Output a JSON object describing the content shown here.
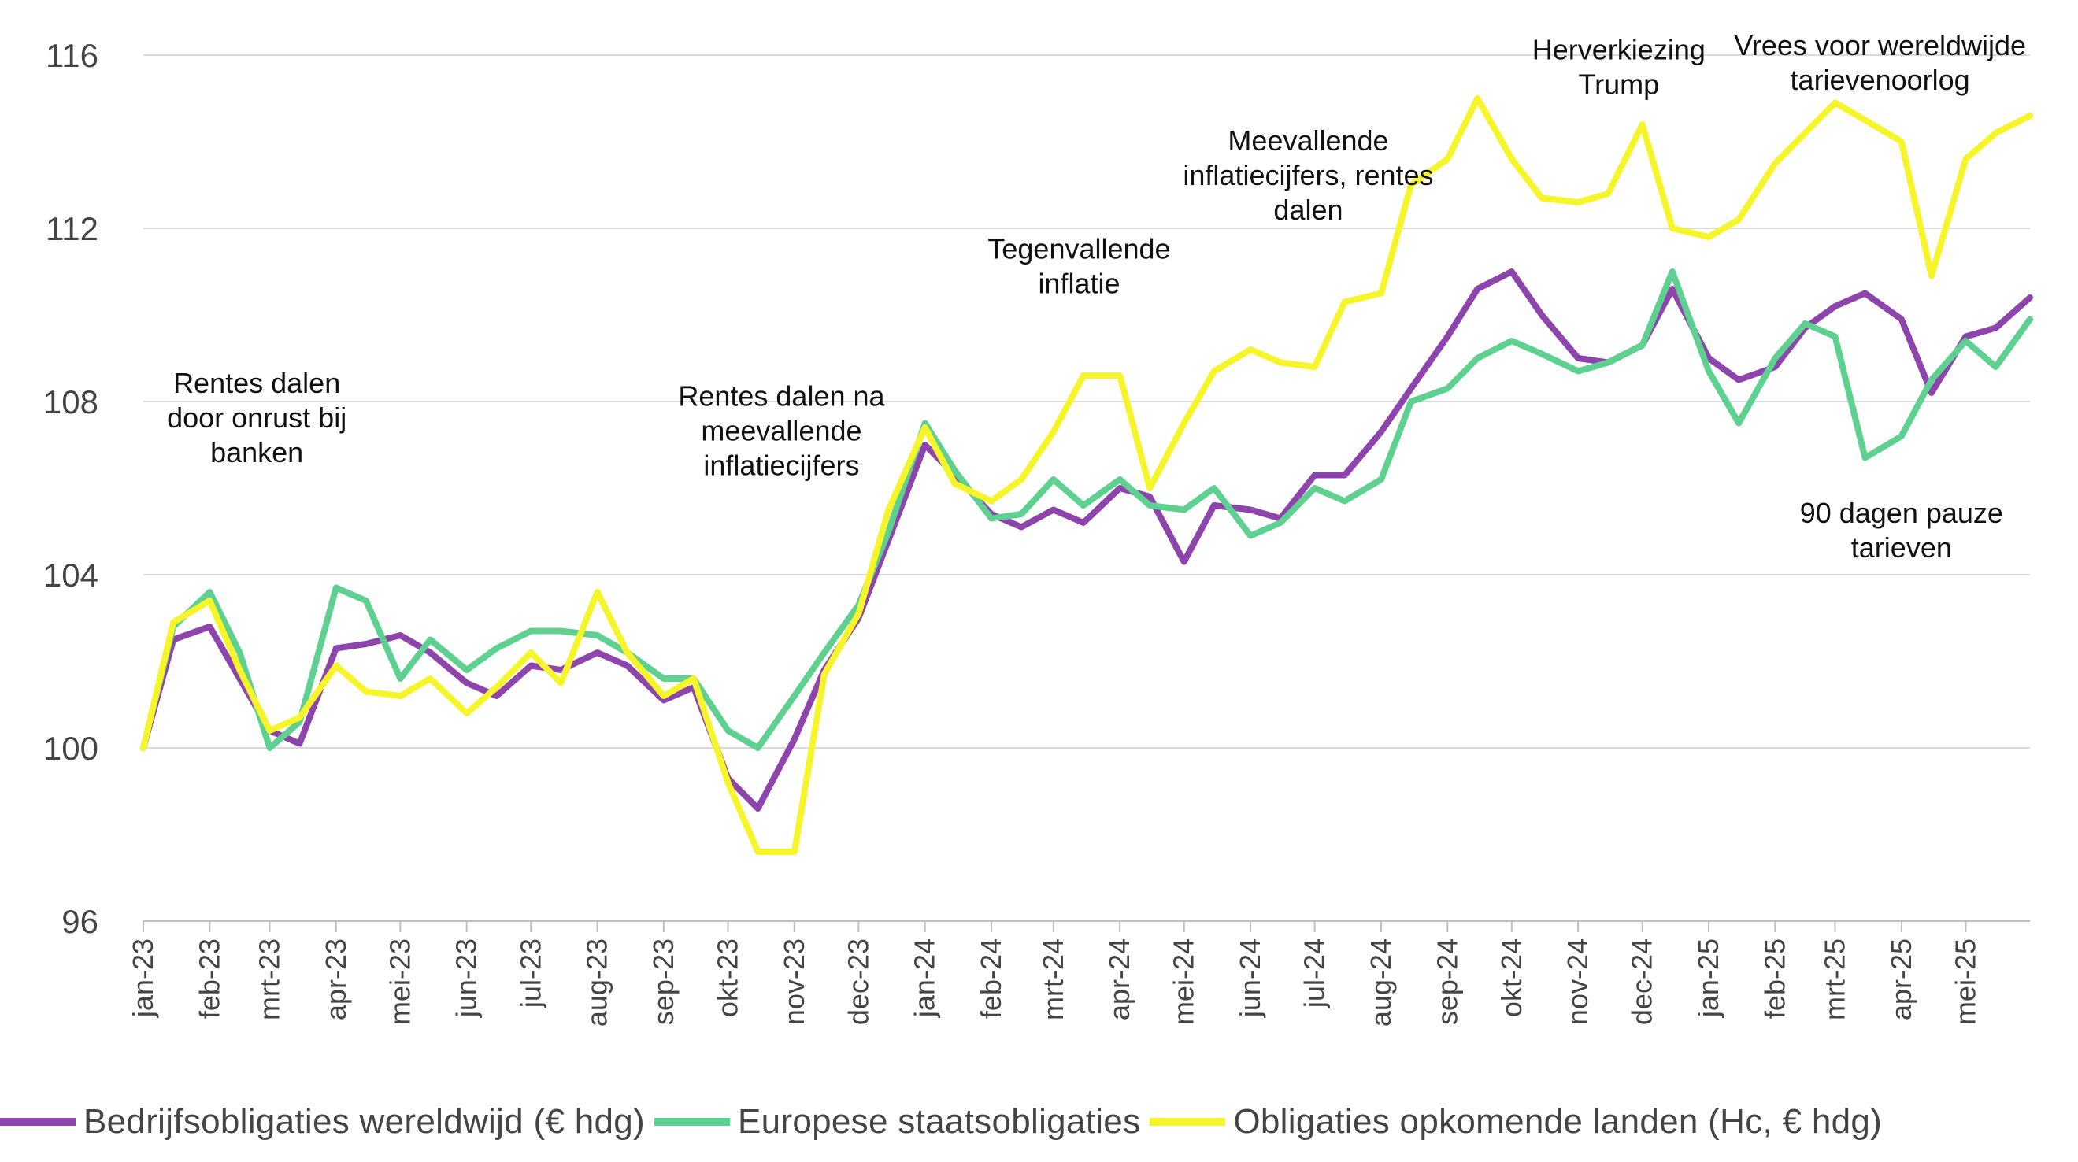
{
  "chart_data": {
    "type": "line",
    "title": "",
    "xlabel": "",
    "ylabel": "",
    "ylim": [
      96,
      116
    ],
    "yticks": [
      96,
      100,
      104,
      108,
      112,
      116
    ],
    "gridlines": true,
    "legend_position": "bottom",
    "x_tick_labels": [
      "jan-23",
      "feb-23",
      "mrt-23",
      "apr-23",
      "mei-23",
      "jun-23",
      "jul-23",
      "aug-23",
      "sep-23",
      "okt-23",
      "nov-23",
      "dec-23",
      "jan-24",
      "feb-24",
      "mrt-24",
      "apr-24",
      "mei-24",
      "jun-24",
      "jul-24",
      "aug-24",
      "sep-24",
      "okt-24",
      "nov-24",
      "dec-24",
      "jan-25",
      "feb-25",
      "mrt-25",
      "apr-25",
      "mei-25"
    ],
    "x": [
      "2023-01-01",
      "2023-01-15",
      "2023-02-01",
      "2023-02-15",
      "2023-03-01",
      "2023-03-15",
      "2023-04-01",
      "2023-04-15",
      "2023-05-01",
      "2023-05-15",
      "2023-06-01",
      "2023-06-15",
      "2023-07-01",
      "2023-07-15",
      "2023-08-01",
      "2023-08-15",
      "2023-09-01",
      "2023-09-15",
      "2023-10-01",
      "2023-10-15",
      "2023-11-01",
      "2023-11-15",
      "2023-12-01",
      "2023-12-15",
      "2024-01-01",
      "2024-01-15",
      "2024-02-01",
      "2024-02-15",
      "2024-03-01",
      "2024-03-15",
      "2024-04-01",
      "2024-04-15",
      "2024-05-01",
      "2024-05-15",
      "2024-06-01",
      "2024-06-15",
      "2024-07-01",
      "2024-07-15",
      "2024-08-01",
      "2024-08-15",
      "2024-09-01",
      "2024-09-15",
      "2024-10-01",
      "2024-10-15",
      "2024-11-01",
      "2024-11-15",
      "2024-12-01",
      "2024-12-15",
      "2025-01-01",
      "2025-01-15",
      "2025-02-01",
      "2025-02-15",
      "2025-03-01",
      "2025-03-15",
      "2025-04-01",
      "2025-04-15",
      "2025-05-01",
      "2025-05-15",
      "2025-05-31"
    ],
    "series": [
      {
        "name": "Bedrijfsobligaties wereldwijd (€ hdg)",
        "color": "#8e44ad",
        "values": [
          100.0,
          102.5,
          102.8,
          101.6,
          100.4,
          100.1,
          102.3,
          102.4,
          102.6,
          102.2,
          101.5,
          101.2,
          101.9,
          101.8,
          102.2,
          101.9,
          101.1,
          101.4,
          99.3,
          98.6,
          100.2,
          101.8,
          103.0,
          104.8,
          107.0,
          106.3,
          105.4,
          105.1,
          105.5,
          105.2,
          106.0,
          105.8,
          104.3,
          105.6,
          105.5,
          105.3,
          106.3,
          106.3,
          107.3,
          108.3,
          109.5,
          110.6,
          111.0,
          110.0,
          109.0,
          108.9,
          109.3,
          110.6,
          109.0,
          108.5,
          108.8,
          109.7,
          110.2,
          110.5,
          109.9,
          108.2,
          109.5,
          109.7,
          110.4
        ]
      },
      {
        "name": "Europese staatsobligaties",
        "color": "#5ed08f",
        "values": [
          100.0,
          102.8,
          103.6,
          102.2,
          100.0,
          100.6,
          103.7,
          103.4,
          101.6,
          102.5,
          101.8,
          102.3,
          102.7,
          102.7,
          102.6,
          102.2,
          101.6,
          101.6,
          100.4,
          100.0,
          101.2,
          102.2,
          103.3,
          105.0,
          107.5,
          106.4,
          105.3,
          105.4,
          106.2,
          105.6,
          106.2,
          105.6,
          105.5,
          106.0,
          104.9,
          105.2,
          106.0,
          105.7,
          106.2,
          108.0,
          108.3,
          109.0,
          109.4,
          109.1,
          108.7,
          108.9,
          109.3,
          111.0,
          108.7,
          107.5,
          109.0,
          109.8,
          109.5,
          106.7,
          107.2,
          108.5,
          109.4,
          108.8,
          109.9
        ]
      },
      {
        "name": "Obligaties opkomende landen (Hc, € hdg)",
        "color": "#f5f52a",
        "values": [
          100.0,
          102.9,
          103.4,
          101.8,
          100.4,
          100.7,
          101.9,
          101.3,
          101.2,
          101.6,
          100.8,
          101.4,
          102.2,
          101.5,
          103.6,
          102.2,
          101.2,
          101.6,
          99.2,
          97.6,
          97.6,
          101.7,
          103.1,
          105.5,
          107.4,
          106.1,
          105.7,
          106.2,
          107.3,
          108.6,
          108.6,
          106.0,
          107.5,
          108.7,
          109.2,
          108.9,
          108.8,
          110.3,
          110.5,
          113.0,
          113.6,
          115.0,
          113.6,
          112.7,
          112.6,
          112.8,
          114.4,
          112.0,
          111.8,
          112.2,
          113.5,
          114.2,
          114.9,
          114.5,
          114.0,
          110.9,
          113.6,
          114.2,
          114.6
        ]
      }
    ],
    "annotations": [
      {
        "lines": [
          "Rentes dalen",
          "door onrust bij",
          "banken"
        ],
        "x": "2023-02-23",
        "y": 108.2
      },
      {
        "lines": [
          "Rentes dalen na",
          "meevallende",
          "inflatiecijfers"
        ],
        "x": "2023-10-26",
        "y": 107.9
      },
      {
        "lines": [
          "Tegenvallende",
          "inflatie"
        ],
        "x": "2024-03-13",
        "y": 111.3
      },
      {
        "lines": [
          "Meevallende",
          "inflatiecijfers, rentes",
          "dalen"
        ],
        "x": "2024-06-28",
        "y": 113.8
      },
      {
        "lines": [
          "Herverkiezing",
          "Trump"
        ],
        "x": "2024-11-20",
        "y": 115.9
      },
      {
        "lines": [
          "Vrees voor wereldwijde",
          "tarievenoorlog"
        ],
        "x": "2025-03-22",
        "y": 116.0
      },
      {
        "lines": [
          "90 dagen pauze",
          "tarieven"
        ],
        "x": "2025-04-01",
        "y": 105.2
      }
    ]
  }
}
